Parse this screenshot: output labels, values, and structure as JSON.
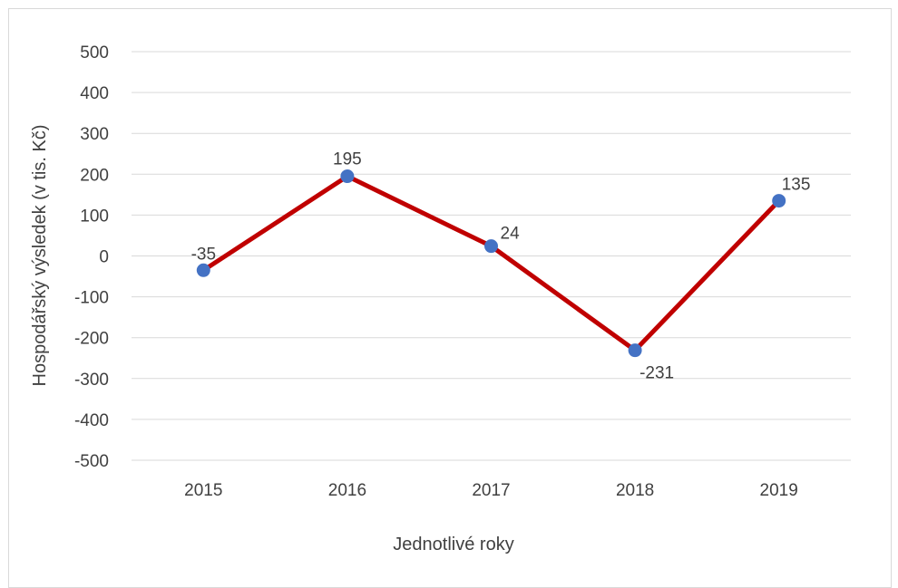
{
  "chart_data": {
    "type": "line",
    "categories": [
      "2015",
      "2016",
      "2017",
      "2018",
      "2019"
    ],
    "series": [
      {
        "values": [
          -35,
          195,
          24,
          -231,
          135
        ]
      }
    ],
    "data_labels": [
      "-35",
      "195",
      "24",
      "-231",
      "135"
    ],
    "xlabel": "Jednotlivé roky",
    "ylabel": "Hospodářský výsledek (v tis. Kč)",
    "ylim": [
      -500,
      500
    ],
    "yticks": [
      500,
      400,
      300,
      200,
      100,
      0,
      -100,
      -200,
      -300,
      -400,
      -500
    ],
    "ytick_labels": [
      "500",
      "400",
      "300",
      "200",
      "100",
      "0",
      "-100",
      "-200",
      "-300",
      "-400",
      "-500"
    ],
    "grid": "horizontal",
    "legend": "none",
    "colors": {
      "line": "#c00000",
      "marker": "#4472c4",
      "gridline": "#d9d9d9",
      "text": "#404040"
    }
  }
}
